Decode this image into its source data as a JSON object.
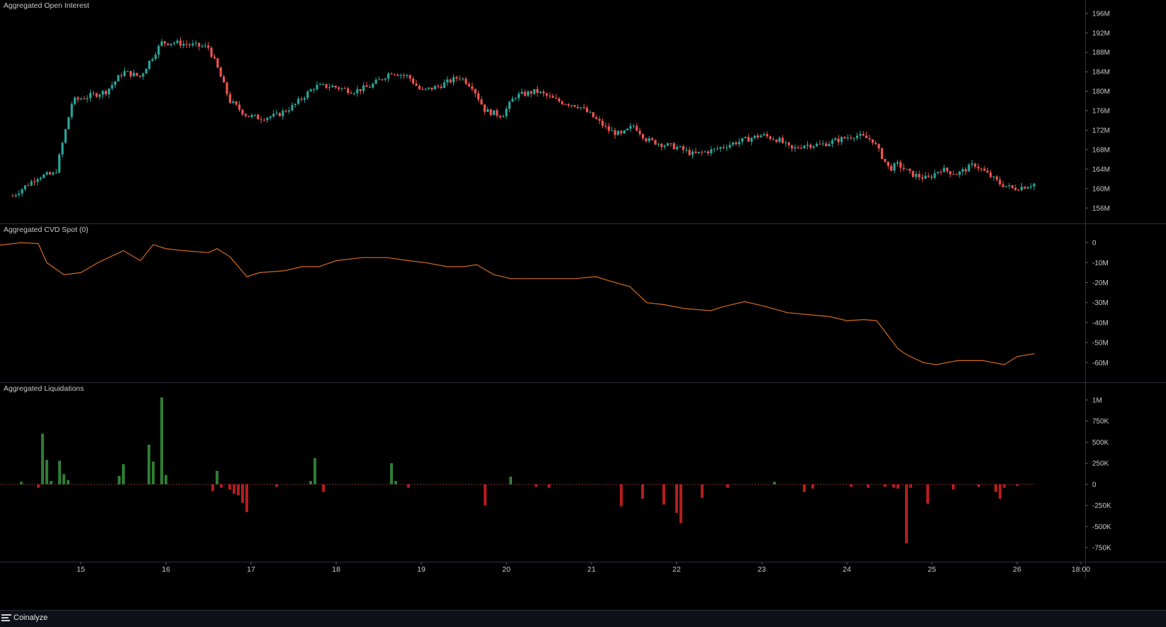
{
  "app": {
    "brand": "Coinalyze"
  },
  "colors": {
    "background": "#000000",
    "grid": "#2a2e39",
    "up": "#26a69a",
    "down": "#ef5350",
    "cvd_line": "#d2691e",
    "liq_long": "#2e7d32",
    "liq_short": "#b71c1c",
    "text": "#c8c8c8"
  },
  "chart_data": [
    {
      "type": "candlestick",
      "title": "Aggregated Open Interest",
      "unit": "M",
      "ylim": [
        154,
        197
      ],
      "yticks": [
        "196M",
        "192M",
        "188M",
        "184M",
        "180M",
        "176M",
        "172M",
        "168M",
        "164M",
        "160M",
        "156M"
      ],
      "ytick_values": [
        196,
        192,
        188,
        184,
        180,
        176,
        172,
        168,
        164,
        160,
        156
      ],
      "x": [
        14.2,
        14.5,
        14.7,
        14.9,
        15.1,
        15.3,
        15.5,
        15.7,
        15.8,
        15.95,
        16.1,
        16.3,
        16.5,
        16.6,
        16.75,
        16.95,
        17.1,
        17.3,
        17.5,
        17.75,
        17.95,
        18.2,
        18.4,
        18.65,
        18.85,
        19.0,
        19.2,
        19.45,
        19.6,
        19.75,
        19.95,
        20.1,
        20.35,
        20.6,
        20.85,
        21.0,
        21.2,
        21.35,
        21.5,
        21.65,
        21.85,
        22.0,
        22.2,
        22.45,
        22.6,
        22.8,
        23.0,
        23.2,
        23.35,
        23.5,
        23.7,
        23.9,
        24.1,
        24.3,
        24.5,
        24.6,
        24.75,
        24.95,
        25.1,
        25.3,
        25.5,
        25.65,
        25.8,
        25.95,
        26.1,
        26.2
      ],
      "values": [
        158.5,
        162.5,
        163,
        178,
        179,
        180,
        184,
        183,
        186,
        190,
        190,
        189.5,
        189,
        185,
        178,
        175,
        174.5,
        175,
        177,
        181,
        181,
        180,
        181,
        184,
        183,
        180,
        181,
        183,
        181,
        176,
        175,
        179,
        180,
        178,
        177,
        175,
        172,
        171,
        173,
        170,
        169,
        168.5,
        167,
        168,
        169,
        170,
        171,
        170,
        168,
        169,
        169,
        170,
        171,
        170,
        164,
        165,
        163,
        162,
        164,
        163,
        165,
        163,
        161,
        160,
        160.5,
        161
      ],
      "series_note": "close values per sampled candle"
    },
    {
      "type": "line",
      "title": "Aggregated CVD Spot (0)",
      "unit": "M",
      "ylim": [
        -67,
        5
      ],
      "yticks": [
        "0",
        "-10M",
        "-20M",
        "-30M",
        "-40M",
        "-50M",
        "-60M"
      ],
      "ytick_values": [
        0,
        -10,
        -20,
        -30,
        -40,
        -50,
        -60
      ],
      "x": [
        14.0,
        14.3,
        14.5,
        14.6,
        14.8,
        15.0,
        15.2,
        15.5,
        15.7,
        15.85,
        16.0,
        16.2,
        16.5,
        16.6,
        16.75,
        16.95,
        17.1,
        17.4,
        17.6,
        17.8,
        18.0,
        18.3,
        18.6,
        18.85,
        19.05,
        19.3,
        19.5,
        19.65,
        19.85,
        20.05,
        20.25,
        20.5,
        20.8,
        21.05,
        21.2,
        21.45,
        21.65,
        21.85,
        22.1,
        22.4,
        22.55,
        22.8,
        23.05,
        23.3,
        23.55,
        23.8,
        24.0,
        24.2,
        24.35,
        24.6,
        24.7,
        24.9,
        25.05,
        25.3,
        25.6,
        25.85,
        26.0,
        26.2
      ],
      "values": [
        -1.5,
        0,
        -0.5,
        -10,
        -16,
        -15,
        -10,
        -4,
        -9,
        -1,
        -3,
        -4,
        -5,
        -3,
        -7,
        -17,
        -15,
        -14,
        -12,
        -12,
        -9,
        -7.5,
        -7.5,
        -9,
        -10,
        -12,
        -12,
        -11,
        -16,
        -18,
        -18,
        -18,
        -18,
        -17,
        -19,
        -22,
        -30,
        -31,
        -33,
        -34,
        -32,
        -29.5,
        -32,
        -35,
        -36,
        -37,
        -39,
        -38.5,
        -39,
        -53,
        -56,
        -60,
        -61,
        -59,
        -59,
        -61,
        -57,
        -55.5
      ]
    },
    {
      "type": "bar",
      "title": "Aggregated Liquidations",
      "unit": "K",
      "ylim": [
        -850,
        1100
      ],
      "yticks": [
        "1M",
        "750K",
        "500K",
        "250K",
        "0",
        "-250K",
        "-500K",
        "-750K"
      ],
      "ytick_values": [
        1000,
        750,
        500,
        250,
        0,
        -250,
        -500,
        -750
      ],
      "x": [
        14.3,
        14.5,
        14.55,
        14.6,
        14.65,
        14.75,
        14.8,
        14.85,
        15.45,
        15.5,
        15.8,
        15.85,
        15.95,
        16.0,
        16.6,
        16.55,
        16.65,
        16.75,
        16.8,
        16.85,
        16.9,
        16.95,
        17.3,
        17.7,
        17.75,
        17.85,
        18.65,
        18.7,
        18.85,
        19.75,
        20.05,
        20.35,
        20.5,
        21.35,
        21.6,
        21.85,
        22.0,
        22.05,
        22.3,
        22.6,
        23.15,
        23.5,
        23.6,
        24.05,
        24.25,
        24.45,
        24.55,
        24.6,
        24.7,
        24.75,
        24.95,
        25.25,
        25.55,
        25.75,
        25.8,
        25.85,
        26.0
      ],
      "values": [
        30,
        -40,
        600,
        290,
        40,
        280,
        120,
        50,
        100,
        240,
        470,
        270,
        1030,
        110,
        160,
        -80,
        -40,
        -60,
        -110,
        -130,
        -220,
        -330,
        -30,
        40,
        310,
        -90,
        250,
        40,
        -40,
        -250,
        90,
        -30,
        -40,
        -260,
        -170,
        -240,
        -340,
        -460,
        -160,
        -40,
        30,
        -90,
        -50,
        -30,
        -40,
        -30,
        -40,
        -50,
        -700,
        -40,
        -230,
        -60,
        -30,
        -90,
        -170,
        -40,
        -20
      ]
    }
  ],
  "x_axis": {
    "ticks": [
      "15",
      "16",
      "17",
      "18",
      "19",
      "20",
      "21",
      "22",
      "23",
      "24",
      "25",
      "26",
      "18:00"
    ],
    "tick_values": [
      15,
      16,
      17,
      18,
      19,
      20,
      21,
      22,
      23,
      24,
      25,
      26,
      26.75
    ],
    "range": [
      14.05,
      26.8
    ]
  }
}
